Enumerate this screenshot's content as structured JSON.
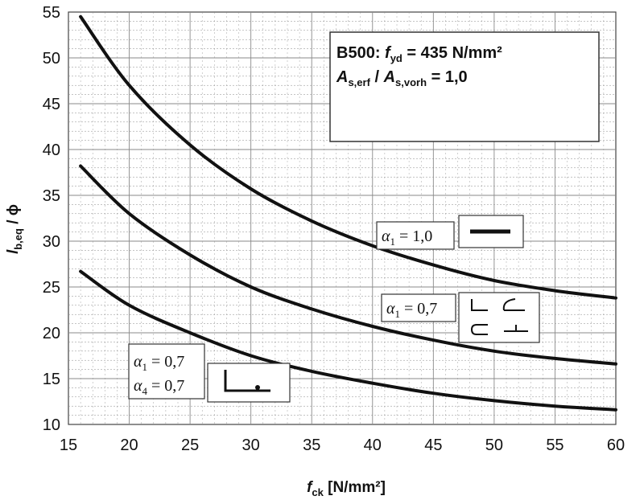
{
  "chart_data": {
    "type": "line",
    "x": [
      16,
      20,
      25,
      30,
      35,
      40,
      45,
      50,
      55,
      60
    ],
    "series": [
      {
        "name": "",
        "values": [
          54.5,
          47.0,
          40.5,
          35.7,
          32.2,
          29.5,
          27.4,
          25.7,
          24.6,
          23.8
        ]
      },
      {
        "name": "",
        "values": [
          38.2,
          33.0,
          28.5,
          25.0,
          22.6,
          20.7,
          19.2,
          18.0,
          17.2,
          16.6
        ]
      },
      {
        "name": "",
        "values": [
          26.7,
          23.0,
          20.0,
          17.5,
          15.8,
          14.5,
          13.4,
          12.6,
          12.0,
          11.6
        ]
      }
    ],
    "xlim": [
      15,
      60
    ],
    "ylim": [
      10,
      55
    ],
    "x_ticks": [
      "15",
      "20",
      "25",
      "30",
      "35",
      "40",
      "45",
      "50",
      "55",
      "60"
    ],
    "y_ticks": [
      "10",
      "15",
      "20",
      "25",
      "30",
      "35",
      "40",
      "45",
      "50",
      "55"
    ],
    "xlabel": {
      "main": "f",
      "sub": "ck",
      "rest": " [N/mm²]"
    },
    "ylabel": {
      "main": "l",
      "sub": "b,eq",
      "rest": " / ϕ"
    },
    "grid": true,
    "info_box": {
      "line1_a": "B500: ",
      "line1_f": "f",
      "line1_sub": "yd",
      "line1_b": " = 435 N/mm²",
      "line2_a": "A",
      "line2_sub1": "s,erf",
      "line2_mid": " / ",
      "line2_b": "A",
      "line2_sub2": "s,vorh",
      "line2_c": " = 1,0"
    },
    "annotations": [
      {
        "sym": "α",
        "sub": "1",
        "val": " = 1,0"
      },
      {
        "sym": "α",
        "sub": "1",
        "val": " = 0,7"
      },
      {
        "sym": "α",
        "sub": "1",
        "val": " = 0,7"
      },
      {
        "sym": "α",
        "sub": "4",
        "val": " = 0,7"
      }
    ],
    "colors": {
      "line": "#111111",
      "grid": "#8a8a8a"
    }
  }
}
